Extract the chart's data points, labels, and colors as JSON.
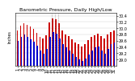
{
  "title": "Barometric Pressure, Daily High/Low",
  "left_label": "Inches",
  "days": [
    1,
    2,
    3,
    4,
    5,
    6,
    7,
    8,
    9,
    10,
    11,
    12,
    13,
    14,
    15,
    16,
    17,
    18,
    19,
    20,
    21,
    22,
    23,
    24,
    25,
    26,
    27,
    28,
    29,
    30,
    31
  ],
  "highs": [
    29.92,
    30.08,
    30.15,
    30.1,
    30.05,
    29.98,
    29.85,
    29.72,
    29.68,
    29.78,
    30.18,
    30.32,
    30.28,
    30.15,
    29.92,
    29.8,
    29.75,
    29.65,
    29.55,
    29.48,
    29.42,
    29.5,
    29.62,
    29.72,
    29.78,
    29.82,
    29.75,
    29.68,
    29.8,
    29.88,
    29.92
  ],
  "lows": [
    29.6,
    29.72,
    29.8,
    29.72,
    29.65,
    29.58,
    29.45,
    29.28,
    29.18,
    29.35,
    29.72,
    29.88,
    29.82,
    29.68,
    29.48,
    29.38,
    29.28,
    29.18,
    29.08,
    29.0,
    28.95,
    29.02,
    29.15,
    29.28,
    29.38,
    29.42,
    29.28,
    29.18,
    29.35,
    29.48,
    29.55
  ],
  "high_color": "#cc0000",
  "low_color": "#0000cc",
  "ylim_min": 28.8,
  "ylim_max": 30.5,
  "yticks": [
    29.0,
    29.2,
    29.4,
    29.6,
    29.8,
    30.0,
    30.2,
    30.4
  ],
  "ytick_labels": [
    "29.0",
    "29.2",
    "29.4",
    "29.6",
    "29.8",
    "30.0",
    "30.2",
    "30.4"
  ],
  "dashed_lines": [
    11.5,
    12.5,
    13.5
  ],
  "bg_color": "#ffffff",
  "plot_bg": "#ffffff",
  "title_fontsize": 4.5,
  "tick_fontsize": 3.5,
  "bar_width": 0.42,
  "bar_gap": 0.02
}
